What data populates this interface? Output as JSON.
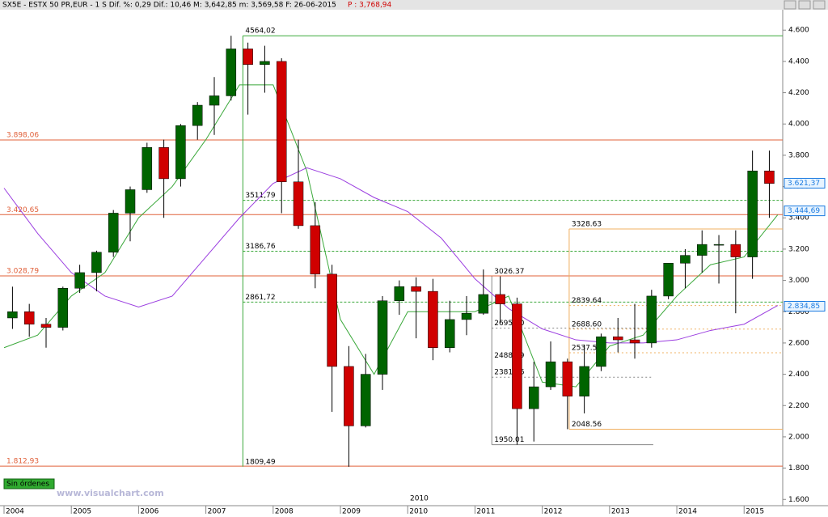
{
  "chart_data": {
    "type": "candlestick",
    "header": {
      "text": "SX5E - ESTX 50 PR,EUR -  1 S Dif. %: 0,29 Dif.: 10,46 M: 3,642,85 m: 3,569,58 F: 26-06-2015",
      "price": "P : 3,768,94"
    },
    "status": "Sin órdenes",
    "watermark": "www.visualchart.com",
    "era_label": "2010",
    "xlim": [
      2004,
      2015.55
    ],
    "xticks": [
      {
        "value": 2004,
        "label": "2004"
      },
      {
        "value": 2005,
        "label": "2005"
      },
      {
        "value": 2006,
        "label": "2006"
      },
      {
        "value": 2007,
        "label": "2007"
      },
      {
        "value": 2008,
        "label": "2008"
      },
      {
        "value": 2009,
        "label": "2009"
      },
      {
        "value": 2010,
        "label": "2010"
      },
      {
        "value": 2011,
        "label": "2011"
      },
      {
        "value": 2012,
        "label": "2012"
      },
      {
        "value": 2013,
        "label": "2013"
      },
      {
        "value": 2014,
        "label": "2014"
      },
      {
        "value": 2015,
        "label": "2015"
      }
    ],
    "ylim": [
      1560,
      4715
    ],
    "yticks": [
      {
        "value": 1600,
        "label": "1.600"
      },
      {
        "value": 1800,
        "label": "1.800"
      },
      {
        "value": 2000,
        "label": "2.000"
      },
      {
        "value": 2200,
        "label": "2.200"
      },
      {
        "value": 2400,
        "label": "2.400"
      },
      {
        "value": 2600,
        "label": "2.600"
      },
      {
        "value": 2800,
        "label": "2.800"
      },
      {
        "value": 3000,
        "label": "3.000"
      },
      {
        "value": 3200,
        "label": "3.200"
      },
      {
        "value": 3400,
        "label": "3.400"
      },
      {
        "value": 3600,
        "label": "3.600"
      },
      {
        "value": 3800,
        "label": "3.800"
      },
      {
        "value": 4000,
        "label": "4.000"
      },
      {
        "value": 4200,
        "label": "4.200"
      },
      {
        "value": 4400,
        "label": "4.400"
      },
      {
        "value": 4600,
        "label": "4.600"
      }
    ],
    "up_color": "#006400",
    "down_color": "#d00000",
    "x": [
      2004.125,
      2004.375,
      2004.625,
      2004.875,
      2005.125,
      2005.375,
      2005.625,
      2005.875,
      2006.125,
      2006.375,
      2006.625,
      2006.875,
      2007.125,
      2007.375,
      2007.625,
      2007.875,
      2008.125,
      2008.375,
      2008.625,
      2008.875,
      2009.125,
      2009.375,
      2009.625,
      2009.875,
      2010.125,
      2010.375,
      2010.625,
      2010.875,
      2011.125,
      2011.375,
      2011.625,
      2011.875,
      2012.125,
      2012.375,
      2012.625,
      2012.875,
      2013.125,
      2013.375,
      2013.625,
      2013.875,
      2014.125,
      2014.375,
      2014.625,
      2014.875,
      2015.125,
      2015.375
    ],
    "ohlc": [
      [
        2760,
        2960,
        2690,
        2800
      ],
      [
        2800,
        2850,
        2640,
        2720
      ],
      [
        2720,
        2760,
        2570,
        2700
      ],
      [
        2700,
        2960,
        2680,
        2950
      ],
      [
        2950,
        3100,
        2920,
        3050
      ],
      [
        3050,
        3190,
        2930,
        3180
      ],
      [
        3180,
        3450,
        3150,
        3430
      ],
      [
        3430,
        3600,
        3250,
        3580
      ],
      [
        3580,
        3880,
        3560,
        3850
      ],
      [
        3850,
        3900,
        3400,
        3650
      ],
      [
        3650,
        4000,
        3600,
        3990
      ],
      [
        3990,
        4140,
        3900,
        4120
      ],
      [
        4120,
        4300,
        3930,
        4180
      ],
      [
        4180,
        4564,
        4150,
        4480
      ],
      [
        4480,
        4520,
        4060,
        4380
      ],
      [
        4380,
        4500,
        4200,
        4400
      ],
      [
        4400,
        4420,
        3430,
        3630
      ],
      [
        3630,
        3900,
        3330,
        3350
      ],
      [
        3350,
        3500,
        2950,
        3040
      ],
      [
        3040,
        3100,
        2160,
        2450
      ],
      [
        2450,
        2580,
        1809,
        2070
      ],
      [
        2070,
        2530,
        2060,
        2400
      ],
      [
        2400,
        2900,
        2300,
        2870
      ],
      [
        2870,
        3000,
        2780,
        2960
      ],
      [
        2960,
        3020,
        2630,
        2930
      ],
      [
        2930,
        3010,
        2490,
        2570
      ],
      [
        2570,
        2870,
        2540,
        2750
      ],
      [
        2750,
        2900,
        2650,
        2790
      ],
      [
        2790,
        3070,
        2780,
        2910
      ],
      [
        2910,
        3026,
        2730,
        2850
      ],
      [
        2850,
        2890,
        1950,
        2180
      ],
      [
        2180,
        2480,
        1970,
        2320
      ],
      [
        2320,
        2610,
        2300,
        2480
      ],
      [
        2480,
        2500,
        2049,
        2260
      ],
      [
        2260,
        2590,
        2150,
        2450
      ],
      [
        2450,
        2660,
        2420,
        2640
      ],
      [
        2640,
        2760,
        2540,
        2620
      ],
      [
        2620,
        2850,
        2500,
        2600
      ],
      [
        2600,
        2940,
        2570,
        2900
      ],
      [
        2900,
        3110,
        2880,
        3110
      ],
      [
        3110,
        3200,
        2950,
        3160
      ],
      [
        3160,
        3320,
        3050,
        3230
      ],
      [
        3230,
        3290,
        2980,
        3230
      ],
      [
        3230,
        3320,
        2790,
        3150
      ],
      [
        3150,
        3830,
        3010,
        3700
      ],
      [
        3700,
        3830,
        3400,
        3620
      ]
    ],
    "averages": [
      {
        "color": "#3aa83a",
        "x": [
          2004,
          2004.5,
          2005,
          2005.5,
          2006,
          2006.5,
          2007,
          2007.5,
          2008,
          2008.5,
          2009,
          2009.5,
          2010,
          2010.5,
          2011,
          2011.5,
          2012,
          2012.5,
          2013,
          2013.5,
          2014,
          2014.5,
          2015,
          2015.5
        ],
        "values": [
          2570,
          2650,
          2900,
          3050,
          3400,
          3600,
          3900,
          4250,
          4250,
          3700,
          2750,
          2400,
          2800,
          2800,
          2800,
          2900,
          2350,
          2320,
          2580,
          2650,
          2900,
          3100,
          3150,
          3420
        ]
      },
      {
        "color": "#9b3ee0",
        "x": [
          2004,
          2004.5,
          2005,
          2005.5,
          2006,
          2006.5,
          2007,
          2007.5,
          2008,
          2008.5,
          2009,
          2009.5,
          2010,
          2010.5,
          2011,
          2011.5,
          2012,
          2012.5,
          2013,
          2013.5,
          2014,
          2014.5,
          2015,
          2015.5
        ],
        "values": [
          3590,
          3300,
          3050,
          2900,
          2830,
          2900,
          3150,
          3400,
          3620,
          3720,
          3650,
          3530,
          3440,
          3270,
          3010,
          2820,
          2690,
          2620,
          2600,
          2600,
          2620,
          2680,
          2720,
          2840
        ]
      }
    ],
    "levels": [
      {
        "value": 3898.06,
        "label": "3.898,06",
        "color": "#e0603a",
        "style": "solid"
      },
      {
        "value": 3420.65,
        "label": "3.420,65",
        "color": "#e0603a",
        "style": "solid"
      },
      {
        "value": 3028.79,
        "label": "3.028,79",
        "color": "#e0603a",
        "style": "solid"
      },
      {
        "value": 1812.93,
        "label": "1.812,93",
        "color": "#e0603a",
        "style": "solid"
      },
      {
        "value": 4564.02,
        "label": "4564,02",
        "color": "#3aa83a",
        "style": "solid",
        "x_start": 2007.55
      },
      {
        "value": 3511.79,
        "label": "3511,79",
        "color": "#3aa83a",
        "style": "dashed",
        "x_start": 2007.55
      },
      {
        "value": 3186.76,
        "label": "3186,76",
        "color": "#3aa83a",
        "style": "dashed",
        "x_start": 2007.55
      },
      {
        "value": 2861.72,
        "label": "2861,72",
        "color": "#3aa83a",
        "style": "dashed",
        "x_start": 2007.55
      },
      {
        "value": 1809.49,
        "label": "1809,49",
        "color": "#3aa83a",
        "style": "none",
        "x_start": 2007.55
      },
      {
        "value": 3328.63,
        "label": "3328.63",
        "color": "#f0b060",
        "style": "solid",
        "x_start": 2012.4
      },
      {
        "value": 2839.64,
        "label": "2839.64",
        "color": "#f0b060",
        "style": "dotted",
        "x_start": 2012.4
      },
      {
        "value": 2688.6,
        "label": "2688.60",
        "color": "#f0b060",
        "style": "dotted",
        "x_start": 2012.4
      },
      {
        "value": 2537.55,
        "label": "2537.55",
        "color": "#f0b060",
        "style": "dotted",
        "x_start": 2012.4
      },
      {
        "value": 2048.56,
        "label": "2048.56",
        "color": "#f0b060",
        "style": "solid",
        "x_start": 2012.4
      },
      {
        "value": 3026.37,
        "label": "3026.37",
        "color": "#888888",
        "style": "none",
        "x_start": 2011.25,
        "x_end": 2013.65
      },
      {
        "value": 2695.2,
        "label": "2695.20",
        "color": "#888888",
        "style": "dotted",
        "x_start": 2011.25,
        "x_end": 2013.65
      },
      {
        "value": 2488.19,
        "label": "2488.19",
        "color": "#888888",
        "style": "none",
        "x_start": 2011.25,
        "x_end": 2013.65
      },
      {
        "value": 2381.16,
        "label": "2381.16",
        "color": "#888888",
        "style": "dotted",
        "x_start": 2011.25,
        "x_end": 2013.65
      },
      {
        "value": 1950.01,
        "label": "1950.01",
        "color": "#888888",
        "style": "solid",
        "x_start": 2011.25,
        "x_end": 2013.65
      }
    ],
    "price_tags": [
      {
        "value": 3621.37,
        "label": "3.621,37",
        "color": "#1a7ae0"
      },
      {
        "value": 3444.69,
        "label": "3.444,69",
        "color": "#1a7ae0"
      },
      {
        "value": 2834.85,
        "label": "2.834,85",
        "color": "#1a7ae0"
      }
    ]
  }
}
